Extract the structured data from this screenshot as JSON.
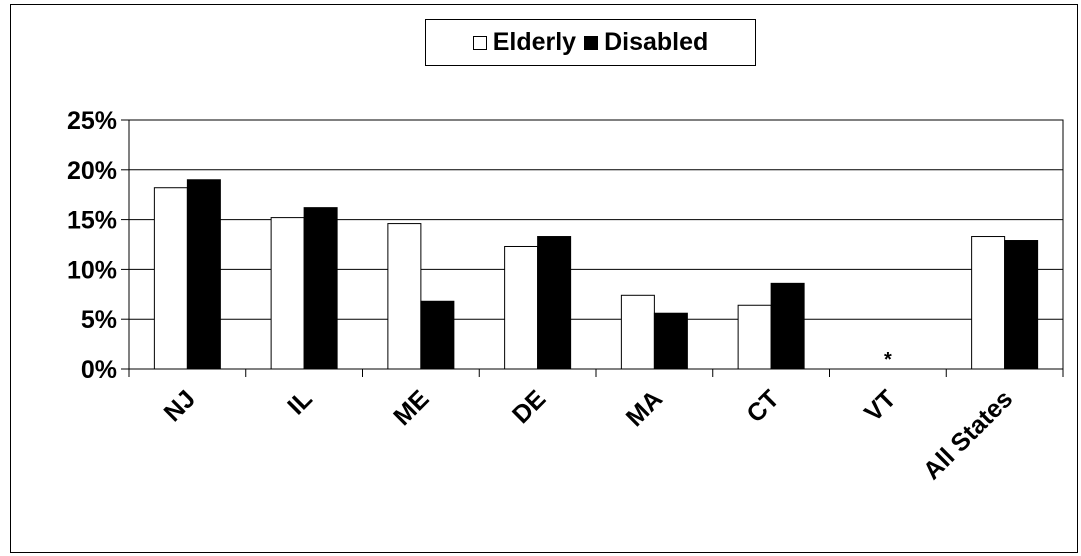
{
  "chart_data": {
    "type": "bar",
    "categories": [
      "NJ",
      "IL",
      "ME",
      "DE",
      "MA",
      "CT",
      "VT",
      "All States"
    ],
    "series": [
      {
        "name": "Elderly",
        "color": "#ffffff",
        "values": [
          18.2,
          15.2,
          14.6,
          12.3,
          7.4,
          6.4,
          null,
          13.3
        ]
      },
      {
        "name": "Disabled",
        "color": "#000000",
        "values": [
          19.0,
          16.2,
          6.8,
          13.3,
          5.6,
          8.6,
          null,
          12.9
        ]
      }
    ],
    "annotations": [
      {
        "category": "VT",
        "text": "*"
      }
    ],
    "yticks": [
      "0%",
      "5%",
      "10%",
      "15%",
      "20%",
      "25%"
    ],
    "ylim": [
      0,
      25
    ],
    "ytick_step": 5,
    "grid": true,
    "legend_position": "top-center",
    "title": "",
    "xlabel": "",
    "ylabel": ""
  }
}
